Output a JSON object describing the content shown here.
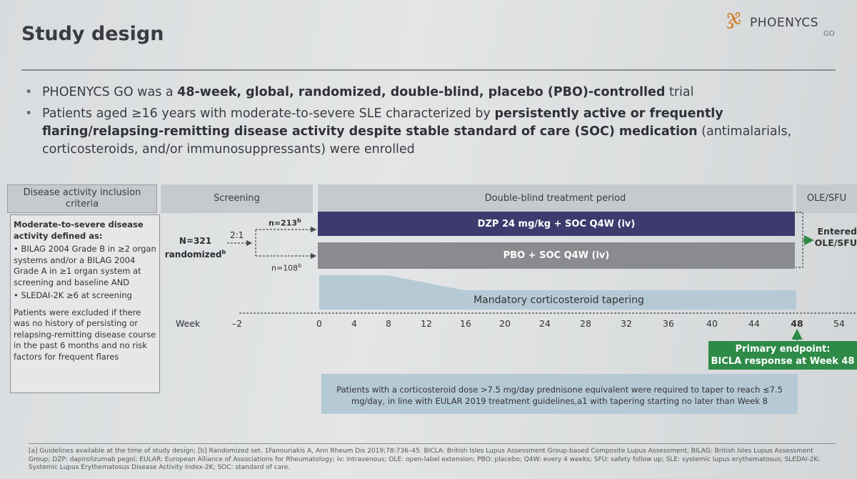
{
  "header": {
    "title": "Study design",
    "logo_name": "PHOENYCS",
    "logo_sub": "GO"
  },
  "bullets": {
    "b1": {
      "p1": "PHOENYCS GO was a ",
      "bold": "48-week, global, randomized, double-blind, placebo (PBO)-controlled",
      "p2": " trial"
    },
    "b2": {
      "p1": "Patients aged ≥16 years with moderate-to-severe SLE characterized by ",
      "bold": "persistently active or frequently flaring/relapsing-remitting disease activity despite stable standard of care (SOC) medication",
      "p2": " (antimalarials, corticosteroids, and/or immunosuppressants) were enrolled"
    }
  },
  "diagram": {
    "headers": {
      "criteria": "Disease activity inclusion criteria",
      "screening": "Screening",
      "treatment": "Double-blind treatment period",
      "ole": "OLE/SFU"
    },
    "criteria": {
      "title": "Moderate-to-severe disease activity defined as:",
      "item1": "• BILAG 2004 Grade B in ≥2 organ systems and/or a BILAG 2004 Grade A in ≥1 organ system at screening and baseline AND",
      "item2": "• SLEDAI-2K ≥6 at screening",
      "exclusion": "Patients were excluded if there was no history of persisting or relapsing-remitting disease course in the past 6 months and no risk factors for frequent flares"
    },
    "n_total": "N=321 randomized",
    "n_total_sup": "b",
    "ratio": "2:1",
    "n_dzp": "n=213",
    "n_pbo": "n=108",
    "n_sup": "b",
    "dzp_arm": "DZP 24 mg/kg + SOC Q4W (iv)",
    "pbo_arm": "PBO + SOC Q4W (iv)",
    "ole_label": "Entered OLE/SFU",
    "taper_label": "Mandatory corticosteroid tapering",
    "week_label": "Week",
    "weeks": [
      "–2",
      "0",
      "4",
      "8",
      "12",
      "16",
      "20",
      "24",
      "28",
      "32",
      "36",
      "40",
      "44",
      "48",
      "54"
    ],
    "primary_endpoint": {
      "line1": "Primary endpoint:",
      "line2": "BICLA response at Week 48"
    },
    "note": "Patients with a corticosteroid dose >7.5 mg/day prednisone equivalent were required to taper to reach ≤7.5 mg/day, in line with EULAR 2019 treatment guidelines,a1 with tapering starting no later than Week 8"
  },
  "footnote": "[a] Guidelines available at the time of study design; [b] Randomized set. 1Fanouriakis A, Ann Rheum Dis 2019;78:736–45. BICLA: British Isles Lupus Assessment Group-based Composite Lupus Assessment; BILAG: British Isles Lupus Assessment Group; DZP: dapirolizumab pegol; EULAR: European Alliance of Associations for Rheumatology; iv: intravenous; OLE: open-label extension; PBO: placebo; Q4W: every 4 weeks; SFU: safety follow up; SLE: systemic lupus erythematosus; SLEDAI-2K: Systemic Lupus Erythematosus Disease Activity Index-2K; SOC: standard of care.",
  "colors": {
    "dzp": "#3d3b6e",
    "pbo": "#8a8b8e",
    "taper": "#b6cad6",
    "endpoint": "#2e8a47"
  }
}
